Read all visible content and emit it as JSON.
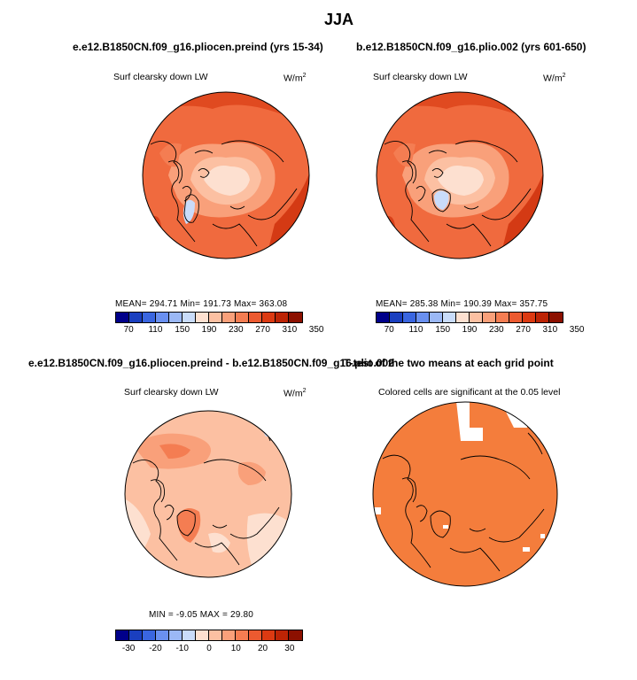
{
  "page_title": "JJA",
  "panels": [
    {
      "title": "e.e12.B1850CN.f09_g16.pliocen.preind (yrs 15-34)",
      "variable": "Surf clearsky down LW",
      "units_base": "W/m",
      "units_exp": "2",
      "stats": "MEAN= 294.71   Min= 191.73   Max= 363.08"
    },
    {
      "title": "b.e12.B1850CN.f09_g16.plio.002 (yrs 601-650)",
      "variable": "Surf clearsky down LW",
      "units_base": "W/m",
      "units_exp": "2",
      "stats": "MEAN= 285.38   Min= 190.39   Max= 357.75"
    },
    {
      "title": "e.e12.B1850CN.f09_g16.pliocen.preind - b.e12.B1850CN.f09_g16.plio.002",
      "variable": "Surf clearsky down LW",
      "units_base": "W/m",
      "units_exp": "2",
      "stats": "MIN =   -9.05   MAX =   29.80"
    },
    {
      "title": "T-test of the two means at each grid point",
      "variable": "Colored cells are significant at the 0.05 level"
    }
  ],
  "colorbar_abs": {
    "colors": [
      "#00008a",
      "#1a3fbf",
      "#3a66e0",
      "#6a90f0",
      "#9bb8f5",
      "#c9dcfa",
      "#fde0d0",
      "#fcc0a2",
      "#f9a07a",
      "#f47d52",
      "#ec5a30",
      "#dc3a12",
      "#bd2405",
      "#8c1000"
    ],
    "ticks": [
      "70",
      "110",
      "150",
      "190",
      "230",
      "270",
      "310",
      "350"
    ]
  },
  "colorbar_diff": {
    "colors": [
      "#00008a",
      "#1a3fbf",
      "#3a66e0",
      "#6a90f0",
      "#9bb8f5",
      "#c9dcfa",
      "#fde0d0",
      "#fcc0a2",
      "#f9a07a",
      "#f47d52",
      "#ec5a30",
      "#dc3a12",
      "#bd2405",
      "#8c1000"
    ],
    "ticks": [
      "-30",
      "-20",
      "-10",
      "0",
      "10",
      "20",
      "30"
    ]
  }
}
